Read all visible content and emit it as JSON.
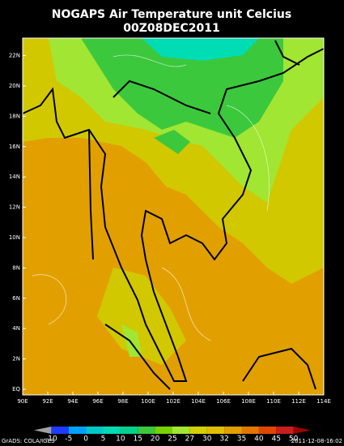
{
  "header": {
    "title": "NOGAPS Air Temperature unit Celcius",
    "subtitle": "00Z08DEC2011"
  },
  "map": {
    "lon_labels": [
      "90E",
      "92E",
      "94E",
      "96E",
      "98E",
      "100E",
      "102E",
      "104E",
      "106E",
      "108E",
      "110E",
      "112E",
      "114E"
    ],
    "lat_labels": [
      "EQ",
      "2N",
      "4N",
      "6N",
      "8N",
      "10N",
      "12N",
      "14N",
      "16N",
      "18N",
      "20N",
      "22N"
    ]
  },
  "colorbar": {
    "levels": [
      -10,
      -5,
      0,
      5,
      10,
      15,
      20,
      25,
      27,
      30,
      32,
      35,
      40,
      45,
      50
    ],
    "colors": [
      "#a0a0a0",
      "#1e3cff",
      "#00a0ff",
      "#00c8c8",
      "#00dcb4",
      "#00d28c",
      "#3cc83c",
      "#78d200",
      "#a0e632",
      "#d2d200",
      "#e1be00",
      "#e1a000",
      "#e17800",
      "#e14600",
      "#c81e1e",
      "#a00000"
    ]
  },
  "footer": {
    "left": "GrADS: COLA/IGES",
    "right": "2011-12-08-16:02"
  }
}
